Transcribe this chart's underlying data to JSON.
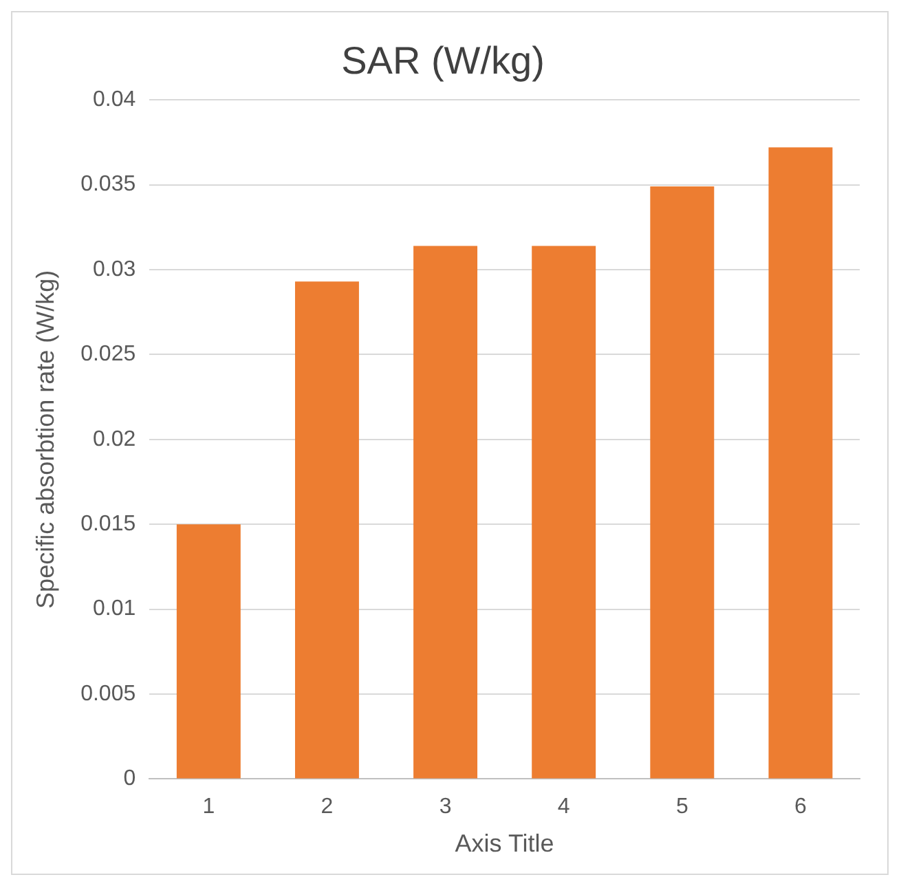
{
  "chart_data": {
    "type": "bar",
    "title": "SAR (W/kg)",
    "xlabel": "Axis Title",
    "ylabel": "Specific absorbtion rate (W/kg)",
    "categories": [
      "1",
      "2",
      "3",
      "4",
      "5",
      "6"
    ],
    "values": [
      0.015,
      0.0293,
      0.0314,
      0.0314,
      0.0349,
      0.0372
    ],
    "color": "#ed7d31",
    "ylim": [
      0,
      0.04
    ],
    "yticks": [
      0,
      0.005,
      0.01,
      0.015,
      0.02,
      0.025,
      0.03,
      0.035,
      0.04
    ],
    "grid": "y"
  }
}
